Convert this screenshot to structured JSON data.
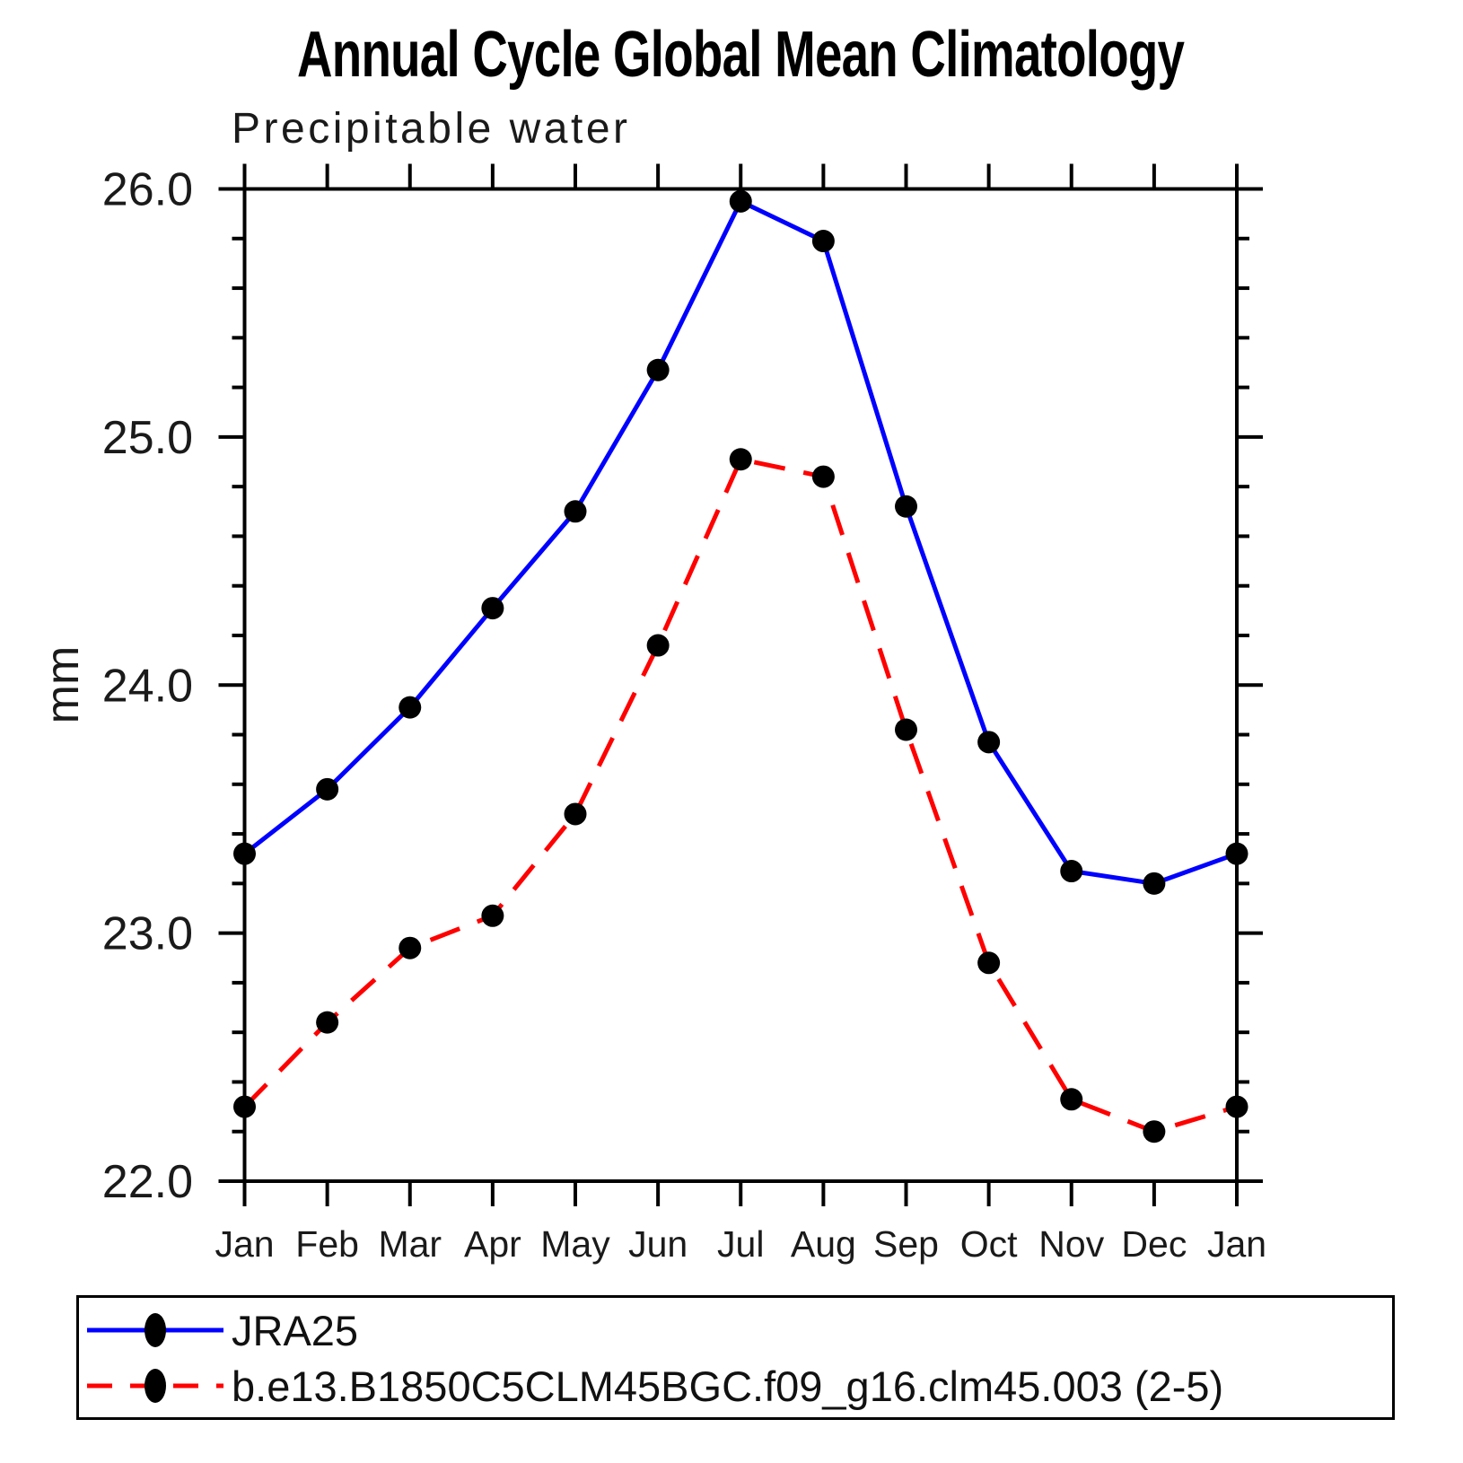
{
  "title": "Annual Cycle Global Mean Climatology",
  "subtitle": "Precipitable water",
  "y_axis_label": "mm",
  "legend": {
    "marker_color": "#000000",
    "items": [
      {
        "label": "JRA25",
        "color": "#0000ff",
        "line_style": "solid"
      },
      {
        "label": "b.e13.B1850C5CLM45BGC.f09_g16.clm45.003 (2-5)",
        "color": "#ff0000",
        "line_style": "dashed"
      }
    ]
  },
  "chart_data": {
    "type": "line",
    "title": "Annual Cycle Global Mean Climatology",
    "subtitle": "Precipitable water",
    "xlabel": "",
    "ylabel": "mm",
    "categories": [
      "Jan",
      "Feb",
      "Mar",
      "Apr",
      "May",
      "Jun",
      "Jul",
      "Aug",
      "Sep",
      "Oct",
      "Nov",
      "Dec",
      "Jan"
    ],
    "series": [
      {
        "name": "JRA25",
        "color": "#0000ff",
        "line_style": "solid",
        "marker": "filled-circle",
        "marker_color": "#000000",
        "values": [
          23.32,
          23.58,
          23.91,
          24.31,
          24.7,
          25.27,
          25.95,
          25.79,
          24.72,
          23.77,
          23.25,
          23.2,
          23.32
        ]
      },
      {
        "name": "b.e13.B1850C5CLM45BGC.f09_g16.clm45.003 (2-5)",
        "color": "#ff0000",
        "line_style": "dashed",
        "marker": "filled-circle",
        "marker_color": "#000000",
        "values": [
          22.3,
          22.64,
          22.94,
          23.07,
          23.48,
          24.16,
          24.91,
          24.84,
          23.82,
          22.88,
          22.33,
          22.2,
          22.3
        ]
      }
    ],
    "ylim": [
      22.0,
      26.0
    ],
    "y_major_step": 1.0,
    "y_minor_step": 0.2,
    "y_major_tick_labels": [
      "22.0",
      "23.0",
      "24.0",
      "25.0",
      "26.0"
    ],
    "grid": false,
    "legend_position": "bottom-left-box",
    "frame": "boxed-with-outward-ticks"
  }
}
